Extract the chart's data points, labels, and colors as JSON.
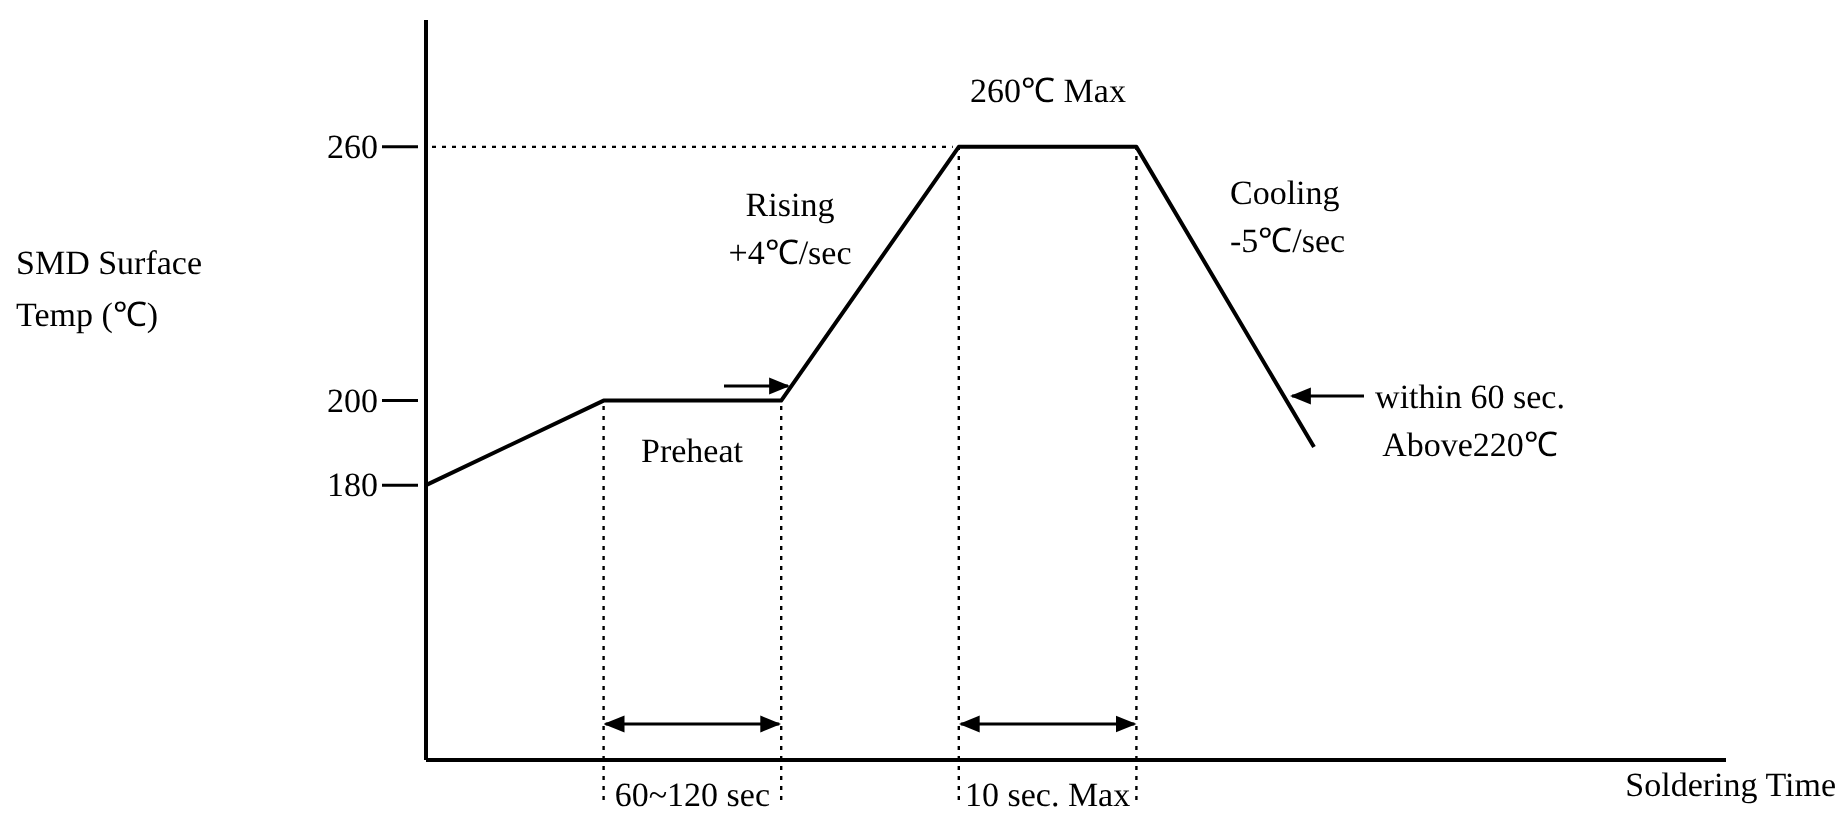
{
  "chart_data": {
    "type": "line",
    "ylabel": "SMD Surface\nTemp (℃)",
    "categories": [
      null,
      null,
      null,
      null,
      null,
      null
    ],
    "series": [
      {
        "color": "#000000",
        "values": [
          180,
          200,
          200,
          260,
          260,
          189
        ]
      }
    ],
    "ylim": [
      115,
      290
    ],
    "yticks": [
      180,
      200,
      260
    ],
    "tick_labels": "y",
    "ref_lines": [
      {
        "axis": "y",
        "value": 260,
        "line_style": "dotted",
        "color": "#000000"
      }
    ],
    "annotations": [
      "Preheat",
      "260℃ Max",
      "Rising\n+4℃/sec",
      "Cooling\n-5℃/sec",
      "within 60 sec.\nAbove220℃",
      "60~120 sec",
      "10 sec. Max",
      "Soldering Time"
    ]
  }
}
